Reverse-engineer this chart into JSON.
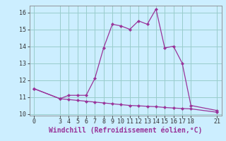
{
  "xlabel": "Windchill (Refroidissement éolien,°C)",
  "x_ticks": [
    0,
    3,
    4,
    5,
    6,
    7,
    8,
    9,
    10,
    11,
    12,
    13,
    14,
    15,
    16,
    17,
    18,
    21
  ],
  "line1_x": [
    0,
    3,
    4,
    5,
    6,
    7,
    8,
    9,
    10,
    11,
    12,
    13,
    14,
    15,
    16,
    17,
    18,
    21
  ],
  "line1_y": [
    11.5,
    10.9,
    11.1,
    11.1,
    11.1,
    12.1,
    13.9,
    15.3,
    15.2,
    15.0,
    15.5,
    15.3,
    16.2,
    13.9,
    14.0,
    13.0,
    10.5,
    10.2
  ],
  "line2_x": [
    0,
    3,
    4,
    5,
    6,
    7,
    8,
    9,
    10,
    11,
    12,
    13,
    14,
    15,
    16,
    17,
    18,
    21
  ],
  "line2_y": [
    11.5,
    10.9,
    10.85,
    10.8,
    10.75,
    10.7,
    10.65,
    10.6,
    10.55,
    10.5,
    10.48,
    10.45,
    10.43,
    10.38,
    10.35,
    10.32,
    10.3,
    10.1
  ],
  "line_color": "#993399",
  "background_color": "#cceeff",
  "grid_color": "#99cccc",
  "ylim": [
    9.9,
    16.4
  ],
  "xlim": [
    -0.5,
    21.5
  ],
  "yticks": [
    10,
    11,
    12,
    13,
    14,
    15,
    16
  ],
  "xlabel_fontsize": 7,
  "tick_fontsize": 6
}
